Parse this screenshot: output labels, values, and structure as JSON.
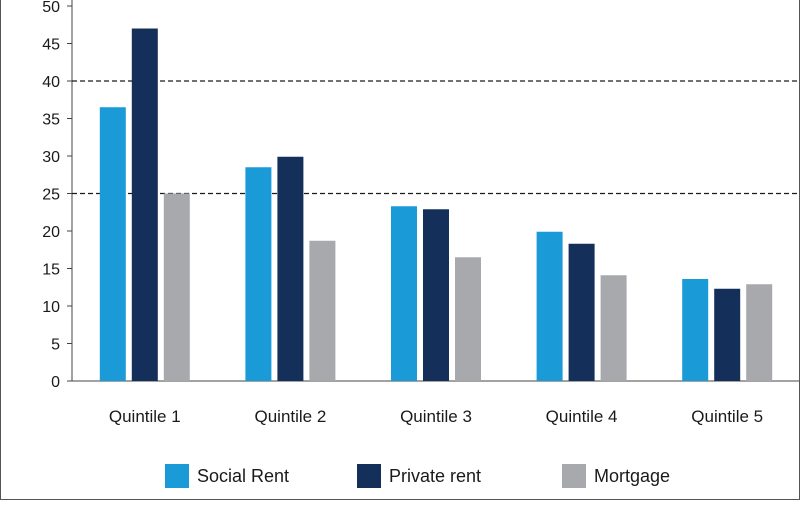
{
  "chart_data": {
    "type": "bar",
    "title": "",
    "xlabel": "",
    "ylabel": "",
    "categories": [
      "Quintile 1",
      "Quintile 2",
      "Quintile 3",
      "Quintile 4",
      "Quintile 5"
    ],
    "series": [
      {
        "name": "Social Rent",
        "color": "#1b9ad8",
        "values": [
          36.5,
          28.5,
          23.3,
          19.9,
          13.6
        ]
      },
      {
        "name": "Private rent",
        "color": "#14305a",
        "values": [
          47.0,
          29.9,
          22.9,
          18.3,
          12.3
        ]
      },
      {
        "name": "Mortgage",
        "color": "#a8a9ad",
        "values": [
          25.0,
          18.7,
          16.5,
          14.1,
          12.9
        ]
      }
    ],
    "ylim": [
      0,
      50
    ],
    "yticks": [
      "0",
      "5",
      "10",
      "15",
      "20",
      "25",
      "30",
      "35",
      "40",
      "45",
      "50"
    ],
    "reference_lines": [
      25,
      40
    ],
    "grid": false,
    "legend_position": "bottom"
  }
}
